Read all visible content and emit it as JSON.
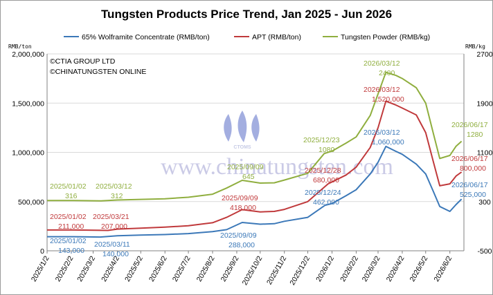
{
  "chart_data": {
    "type": "line",
    "title": "Tungsten Products Price Trend, Jan 2025 - Jun 2026",
    "left_unit": "RMB/ton",
    "right_unit": "RMB/kg",
    "left_ylim": [
      0,
      2000000
    ],
    "right_ylim": [
      -500,
      2700
    ],
    "left_ticks": [
      "0",
      "500,000",
      "1,000,000",
      "1,500,000",
      "2,000,000"
    ],
    "left_tick_values": [
      0,
      500000,
      1000000,
      1500000,
      2000000
    ],
    "right_ticks": [
      "-500",
      "300",
      "1100",
      "1900",
      "2700"
    ],
    "right_tick_values": [
      -500,
      300,
      1100,
      1900,
      2700
    ],
    "x_ticks": [
      "2025/1/2",
      "2025/2/2",
      "2025/3/2",
      "2025/4/2",
      "2025/5/2",
      "2025/6/2",
      "2025/7/2",
      "2025/8/2",
      "2025/9/2",
      "2025/10/2",
      "2025/11/2",
      "2025/12/2",
      "2026/1/2",
      "2026/2/2",
      "2026/3/2",
      "2026/4/2",
      "2026/5/2",
      "2026/6/2"
    ],
    "grid": "horizontal",
    "legend_position": "top",
    "copyright": [
      "©CTIA GROUP LTD",
      "©CHINATUNGSTEN ONLINE"
    ],
    "watermark": "www.chinatungsten.com",
    "logo_text": "CTOMS",
    "series": [
      {
        "name": "65% Wolframite Concentrate (RMB/ton)",
        "axis": "left",
        "color": "#3b78b8",
        "points": [
          [
            "2025/01/02",
            143000
          ],
          [
            "2025/02/05",
            143000
          ],
          [
            "2025/03/11",
            140000
          ],
          [
            "2025/04/02",
            152000
          ],
          [
            "2025/05/02",
            160000
          ],
          [
            "2025/06/02",
            165000
          ],
          [
            "2025/07/02",
            175000
          ],
          [
            "2025/08/02",
            195000
          ],
          [
            "2025/08/20",
            215000
          ],
          [
            "2025/09/09",
            288000
          ],
          [
            "2025/10/02",
            270000
          ],
          [
            "2025/10/20",
            275000
          ],
          [
            "2025/11/02",
            300000
          ],
          [
            "2025/12/02",
            340000
          ],
          [
            "2025/12/24",
            462000
          ],
          [
            "2026/01/02",
            480000
          ],
          [
            "2026/01/20",
            560000
          ],
          [
            "2026/02/02",
            620000
          ],
          [
            "2026/02/20",
            780000
          ],
          [
            "2026/03/02",
            900000
          ],
          [
            "2026/03/12",
            1060000
          ],
          [
            "2026/03/25",
            1010000
          ],
          [
            "2026/04/02",
            980000
          ],
          [
            "2026/04/20",
            880000
          ],
          [
            "2026/05/02",
            780000
          ],
          [
            "2026/05/12",
            600000
          ],
          [
            "2026/05/20",
            450000
          ],
          [
            "2026/06/02",
            400000
          ],
          [
            "2026/06/10",
            470000
          ],
          [
            "2026/06/17",
            525000
          ]
        ]
      },
      {
        "name": "APT (RMB/ton)",
        "axis": "left",
        "color": "#c0393b",
        "points": [
          [
            "2025/01/02",
            211000
          ],
          [
            "2025/02/05",
            211000
          ],
          [
            "2025/03/21",
            207000
          ],
          [
            "2025/04/02",
            220000
          ],
          [
            "2025/05/02",
            230000
          ],
          [
            "2025/06/02",
            240000
          ],
          [
            "2025/07/02",
            255000
          ],
          [
            "2025/08/02",
            285000
          ],
          [
            "2025/08/20",
            340000
          ],
          [
            "2025/09/09",
            418000
          ],
          [
            "2025/10/02",
            395000
          ],
          [
            "2025/10/20",
            400000
          ],
          [
            "2025/11/02",
            420000
          ],
          [
            "2025/12/02",
            500000
          ],
          [
            "2025/12/28",
            680000
          ],
          [
            "2026/01/02",
            700000
          ],
          [
            "2026/01/20",
            770000
          ],
          [
            "2026/02/02",
            850000
          ],
          [
            "2026/02/20",
            1050000
          ],
          [
            "2026/03/02",
            1250000
          ],
          [
            "2026/03/12",
            1520000
          ],
          [
            "2026/03/25",
            1480000
          ],
          [
            "2026/04/02",
            1450000
          ],
          [
            "2026/04/20",
            1380000
          ],
          [
            "2026/05/02",
            1200000
          ],
          [
            "2026/05/12",
            900000
          ],
          [
            "2026/05/20",
            660000
          ],
          [
            "2026/06/02",
            680000
          ],
          [
            "2026/06/10",
            760000
          ],
          [
            "2026/06/17",
            800000
          ]
        ]
      },
      {
        "name": "Tungsten Powder (RMB/kg)",
        "axis": "right",
        "color": "#8fae3e",
        "points": [
          [
            "2025/01/02",
            316
          ],
          [
            "2025/02/05",
            316
          ],
          [
            "2025/03/12",
            312
          ],
          [
            "2025/04/02",
            325
          ],
          [
            "2025/05/02",
            335
          ],
          [
            "2025/06/02",
            345
          ],
          [
            "2025/07/02",
            370
          ],
          [
            "2025/08/02",
            420
          ],
          [
            "2025/08/20",
            520
          ],
          [
            "2025/09/09",
            645
          ],
          [
            "2025/10/02",
            600
          ],
          [
            "2025/10/20",
            605
          ],
          [
            "2025/11/02",
            650
          ],
          [
            "2025/12/02",
            760
          ],
          [
            "2025/12/23",
            1080
          ],
          [
            "2026/01/02",
            1120
          ],
          [
            "2026/01/20",
            1250
          ],
          [
            "2026/02/02",
            1350
          ],
          [
            "2026/02/20",
            1700
          ],
          [
            "2026/03/02",
            2050
          ],
          [
            "2026/03/12",
            2400
          ],
          [
            "2026/03/25",
            2350
          ],
          [
            "2026/04/02",
            2300
          ],
          [
            "2026/04/20",
            2150
          ],
          [
            "2026/05/02",
            1900
          ],
          [
            "2026/05/12",
            1400
          ],
          [
            "2026/05/20",
            1000
          ],
          [
            "2026/06/02",
            1050
          ],
          [
            "2026/06/10",
            1200
          ],
          [
            "2026/06/17",
            1280
          ]
        ]
      }
    ],
    "annotations": [
      {
        "series": 2,
        "date": "2025/01/02",
        "lines": [
          "2025/01/02",
          "316"
        ]
      },
      {
        "series": 2,
        "date": "2025/03/12",
        "lines": [
          "2025/03/12",
          "312"
        ]
      },
      {
        "series": 2,
        "date": "2025/09/09",
        "lines": [
          "2025/09/09",
          "645"
        ]
      },
      {
        "series": 2,
        "date": "2025/12/23",
        "lines": [
          "2025/12/23",
          "1080"
        ]
      },
      {
        "series": 2,
        "date": "2026/03/12",
        "lines": [
          "2026/03/12",
          "2400"
        ]
      },
      {
        "series": 2,
        "date": "2026/06/17",
        "lines": [
          "2026/06/17",
          "1280"
        ]
      },
      {
        "series": 1,
        "date": "2025/01/02",
        "lines": [
          "2025/01/02",
          "211,000"
        ]
      },
      {
        "series": 1,
        "date": "2025/03/21",
        "lines": [
          "2025/03/21",
          "207,000"
        ]
      },
      {
        "series": 1,
        "date": "2025/09/09",
        "lines": [
          "2025/09/09",
          "418,000"
        ]
      },
      {
        "series": 1,
        "date": "2025/12/28",
        "lines": [
          "2025/12/28",
          "680,000"
        ]
      },
      {
        "series": 1,
        "date": "2026/03/12",
        "lines": [
          "2026/03/12",
          "1,520,000"
        ]
      },
      {
        "series": 1,
        "date": "2026/06/17",
        "lines": [
          "2026/06/17",
          "800,000"
        ]
      },
      {
        "series": 0,
        "date": "2025/01/02",
        "lines": [
          "2025/01/02",
          "143,000"
        ]
      },
      {
        "series": 0,
        "date": "2025/03/11",
        "lines": [
          "2025/03/11",
          "140,000"
        ]
      },
      {
        "series": 0,
        "date": "2025/09/09",
        "lines": [
          "2025/09/09",
          "288,000"
        ]
      },
      {
        "series": 0,
        "date": "2025/12/24",
        "lines": [
          "2025/12/24",
          "462,000"
        ]
      },
      {
        "series": 0,
        "date": "2026/03/12",
        "lines": [
          "2026/03/12",
          "1,060,000"
        ]
      },
      {
        "series": 0,
        "date": "2026/06/17",
        "lines": [
          "2026/06/17",
          "525,000"
        ]
      }
    ]
  }
}
